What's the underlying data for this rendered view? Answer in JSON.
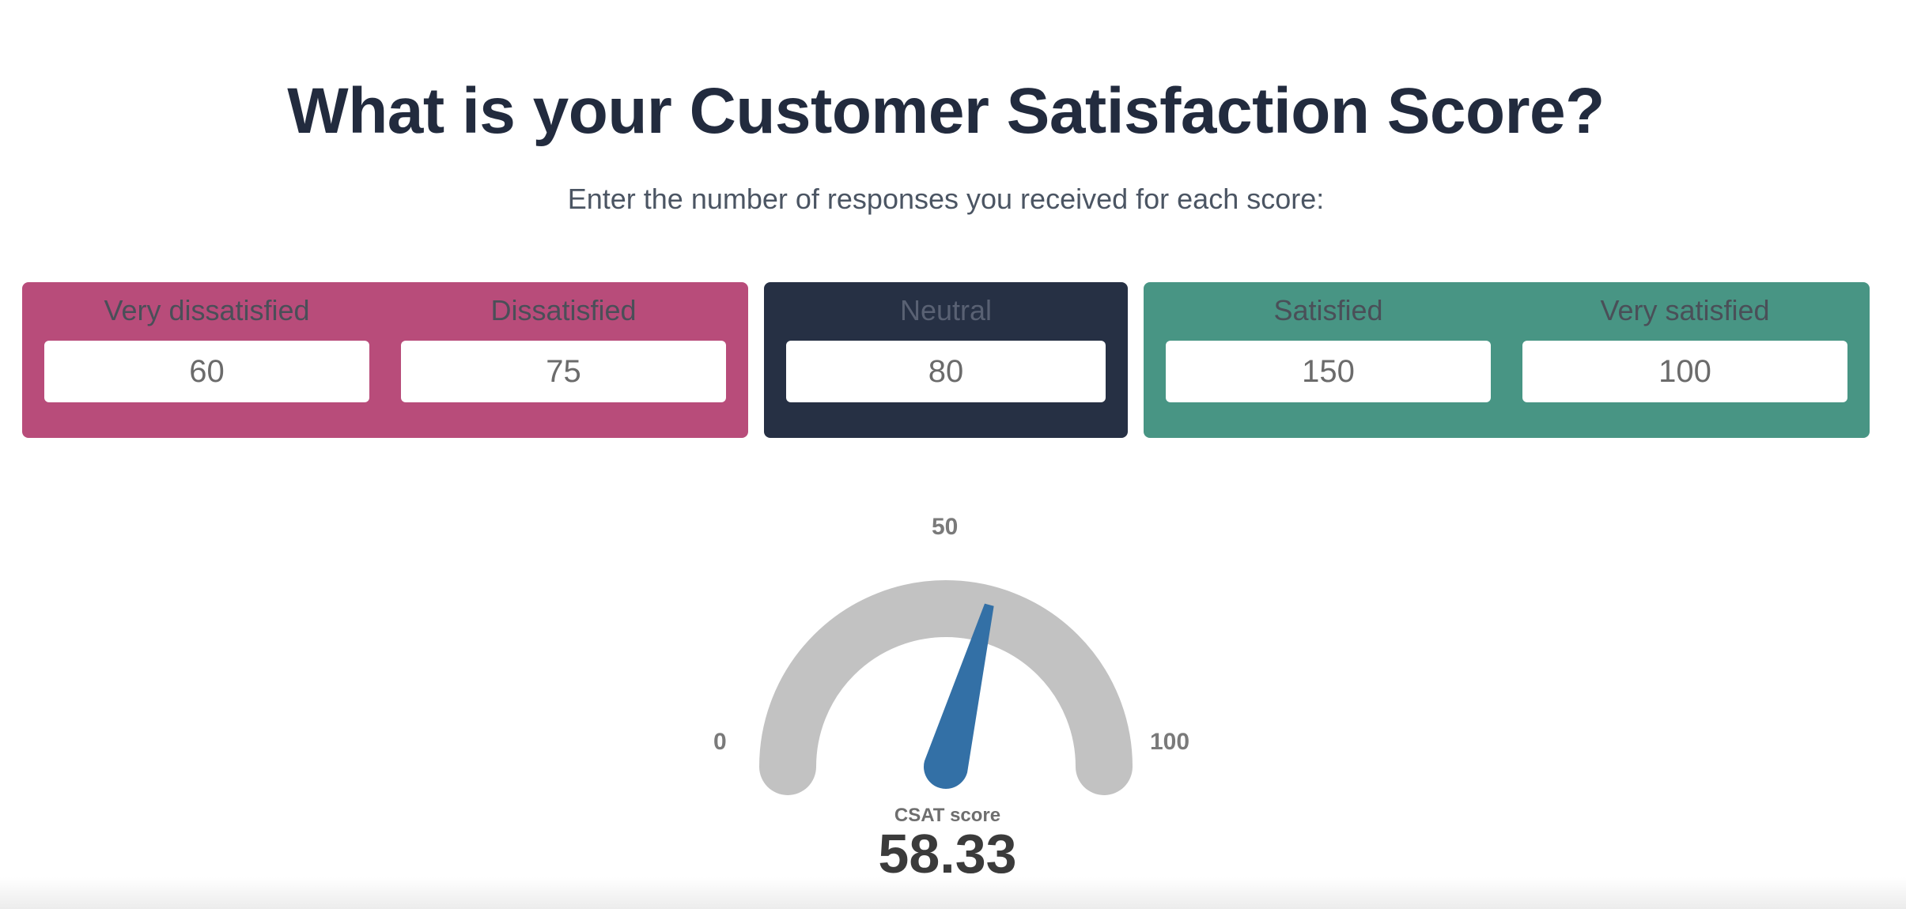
{
  "header": {
    "title": "What is your Customer Satisfaction Score?",
    "subtitle": "Enter the number of responses you received for each score:"
  },
  "responses": {
    "very_dissatisfied": {
      "label": "Very dissatisfied",
      "value": "60"
    },
    "dissatisfied": {
      "label": "Dissatisfied",
      "value": "75"
    },
    "neutral": {
      "label": "Neutral",
      "value": "80"
    },
    "satisfied": {
      "label": "Satisfied",
      "value": "150"
    },
    "very_satisfied": {
      "label": "Very satisfied",
      "value": "100"
    }
  },
  "colors": {
    "negative": "#b84c7a",
    "neutral": "#263044",
    "positive": "#489584",
    "gauge_track": "#c2c2c2",
    "gauge_needle": "#3370a6"
  },
  "gauge": {
    "min_label": "0",
    "mid_label": "50",
    "max_label": "100",
    "min": 0,
    "max": 100,
    "value": 58.33,
    "score_label": "CSAT score",
    "score_text": "58.33"
  }
}
